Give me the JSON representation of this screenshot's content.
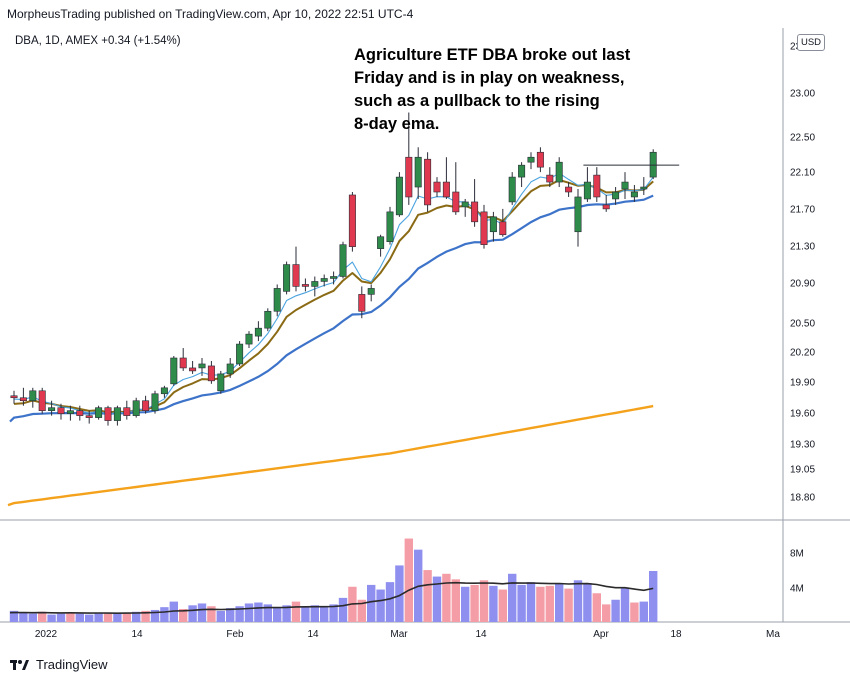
{
  "header": {
    "published": "MorpheusTrading published on TradingView.com, Apr 10, 2022 22:51 UTC-4"
  },
  "symbol": {
    "text": "DBA, 1D, AMEX",
    "change": "+0.34 (+1.54%)"
  },
  "currency_button": "USD",
  "annotation": [
    "Agriculture ETF DBA broke out last",
    "Friday and is in play on weakness,",
    "such as a pullback to the rising",
    "8-day ema."
  ],
  "footer": {
    "brand": "TradingView",
    "logo_icon": "tradingview-logo-icon"
  },
  "colors": {
    "up_candle": "#2e8b4a",
    "down_candle": "#e0394f",
    "ema_fast": "#4aa3df",
    "ema_8day": "#8a6a14",
    "ma_50": "#3d73c9",
    "ma_200": "#f4a21b",
    "volume_up": "#8f8fef",
    "volume_down": "#f49da6",
    "volume_ma": "#2b2b2b"
  },
  "chart_data": [
    {
      "type": "candlestick",
      "symbol": "DBA",
      "interval": "1D",
      "x_tick_labels": [
        "2022",
        "14",
        "Feb",
        "14",
        "Mar",
        "14",
        "Apr",
        "18",
        "Ma"
      ],
      "y_tick_labels": [
        "23.50",
        "23.00",
        "22.50",
        "22.10",
        "21.70",
        "21.30",
        "20.90",
        "20.50",
        "20.20",
        "19.90",
        "19.60",
        "19.30",
        "19.05",
        "18.80"
      ],
      "ylim": [
        18.65,
        23.6
      ],
      "candles": [
        [
          19.9,
          19.95,
          19.82,
          19.88
        ],
        [
          19.88,
          19.98,
          19.8,
          19.85
        ],
        [
          19.85,
          19.98,
          19.78,
          19.95
        ],
        [
          19.95,
          19.98,
          19.72,
          19.75
        ],
        [
          19.75,
          19.85,
          19.7,
          19.78
        ],
        [
          19.78,
          19.82,
          19.66,
          19.72
        ],
        [
          19.72,
          19.8,
          19.65,
          19.75
        ],
        [
          19.75,
          19.8,
          19.65,
          19.7
        ],
        [
          19.7,
          19.75,
          19.62,
          19.68
        ],
        [
          19.68,
          19.8,
          19.66,
          19.78
        ],
        [
          19.78,
          19.8,
          19.6,
          19.65
        ],
        [
          19.65,
          19.8,
          19.6,
          19.78
        ],
        [
          19.78,
          19.85,
          19.66,
          19.7
        ],
        [
          19.7,
          19.88,
          19.68,
          19.85
        ],
        [
          19.85,
          19.9,
          19.72,
          19.75
        ],
        [
          19.75,
          19.95,
          19.72,
          19.92
        ],
        [
          19.92,
          20.0,
          19.88,
          19.98
        ],
        [
          20.02,
          20.3,
          20.0,
          20.28
        ],
        [
          20.28,
          20.38,
          20.15,
          20.18
        ],
        [
          20.18,
          20.25,
          20.12,
          20.15
        ],
        [
          20.18,
          20.28,
          20.1,
          20.22
        ],
        [
          20.2,
          20.25,
          20.02,
          20.05
        ],
        [
          19.95,
          20.15,
          19.92,
          20.12
        ],
        [
          20.12,
          20.28,
          20.08,
          20.22
        ],
        [
          20.22,
          20.45,
          20.2,
          20.42
        ],
        [
          20.42,
          20.55,
          20.38,
          20.52
        ],
        [
          20.5,
          20.65,
          20.45,
          20.58
        ],
        [
          20.58,
          20.78,
          20.55,
          20.75
        ],
        [
          20.75,
          21.02,
          20.7,
          20.98
        ],
        [
          20.95,
          21.25,
          20.92,
          21.22
        ],
        [
          21.22,
          21.4,
          20.95,
          21.0
        ],
        [
          21.02,
          21.08,
          20.95,
          21.0
        ],
        [
          21.0,
          21.1,
          20.9,
          21.05
        ],
        [
          21.05,
          21.12,
          21.0,
          21.08
        ],
        [
          21.08,
          21.15,
          21.02,
          21.1
        ],
        [
          21.1,
          21.45,
          21.08,
          21.42
        ],
        [
          21.92,
          21.95,
          21.35,
          21.4
        ],
        [
          20.92,
          21.0,
          20.68,
          20.75
        ],
        [
          20.92,
          21.02,
          20.85,
          20.98
        ],
        [
          21.38,
          21.52,
          21.3,
          21.5
        ],
        [
          21.45,
          21.8,
          21.42,
          21.75
        ],
        [
          21.72,
          22.15,
          21.7,
          22.1
        ],
        [
          22.3,
          22.75,
          21.82,
          21.9
        ],
        [
          22.0,
          22.4,
          21.88,
          22.3
        ],
        [
          22.28,
          22.35,
          21.75,
          21.82
        ],
        [
          22.05,
          22.1,
          21.9,
          21.95
        ],
        [
          22.05,
          22.3,
          21.88,
          21.9
        ],
        [
          21.95,
          22.25,
          21.72,
          21.75
        ],
        [
          21.8,
          21.88,
          21.7,
          21.85
        ],
        [
          21.85,
          22.08,
          21.6,
          21.65
        ],
        [
          21.75,
          21.82,
          21.38,
          21.42
        ],
        [
          21.55,
          21.75,
          21.45,
          21.7
        ],
        [
          21.65,
          21.78,
          21.5,
          21.52
        ],
        [
          21.85,
          22.15,
          21.82,
          22.1
        ],
        [
          22.1,
          22.25,
          22.0,
          22.22
        ],
        [
          22.25,
          22.35,
          22.18,
          22.3
        ],
        [
          22.35,
          22.4,
          22.15,
          22.2
        ],
        [
          22.12,
          22.2,
          22.0,
          22.05
        ],
        [
          22.05,
          22.3,
          22.0,
          22.25
        ],
        [
          22.0,
          22.05,
          21.9,
          21.95
        ],
        [
          21.55,
          21.98,
          21.4,
          21.9
        ],
        [
          21.88,
          22.2,
          21.85,
          22.05
        ],
        [
          22.12,
          22.2,
          21.85,
          21.9
        ],
        [
          21.82,
          21.92,
          21.75,
          21.78
        ],
        [
          21.88,
          22.0,
          21.82,
          21.95
        ],
        [
          21.98,
          22.15,
          21.88,
          22.05
        ],
        [
          21.9,
          22.02,
          21.85,
          21.95
        ],
        [
          21.98,
          22.1,
          21.92,
          22.0
        ],
        [
          22.1,
          22.38,
          22.08,
          22.35
        ]
      ],
      "breakout_line": {
        "from_index": 61,
        "value": 22.22
      }
    },
    {
      "type": "bar",
      "name": "volume",
      "y_tick_labels": [
        "8M",
        "4M"
      ],
      "ylim": [
        0,
        11000000
      ],
      "values_millions": [
        1.2,
        1.0,
        0.9,
        1.1,
        0.8,
        0.9,
        1.0,
        0.9,
        0.8,
        1.0,
        0.9,
        0.9,
        1.0,
        1.1,
        1.2,
        1.3,
        1.6,
        2.2,
        1.4,
        1.8,
        2.0,
        1.7,
        1.2,
        1.5,
        1.7,
        2.0,
        2.1,
        1.9,
        1.5,
        1.8,
        2.2,
        1.7,
        1.8,
        1.6,
        1.9,
        2.6,
        3.8,
        2.4,
        4.0,
        3.5,
        4.3,
        6.1,
        9.0,
        7.8,
        5.6,
        4.9,
        5.2,
        4.6,
        3.8,
        4.0,
        4.5,
        3.9,
        3.5,
        5.2,
        4.0,
        4.3,
        3.8,
        3.9,
        4.2,
        3.6,
        4.5,
        4.2,
        3.1,
        1.9,
        2.4,
        3.7,
        2.1,
        2.2,
        5.5
      ],
      "down_day_indices": [
        3,
        6,
        10,
        12,
        14,
        18,
        21,
        30,
        36,
        37,
        42,
        44,
        46,
        47,
        49,
        50,
        52,
        56,
        57,
        59,
        62,
        63,
        66
      ]
    }
  ]
}
